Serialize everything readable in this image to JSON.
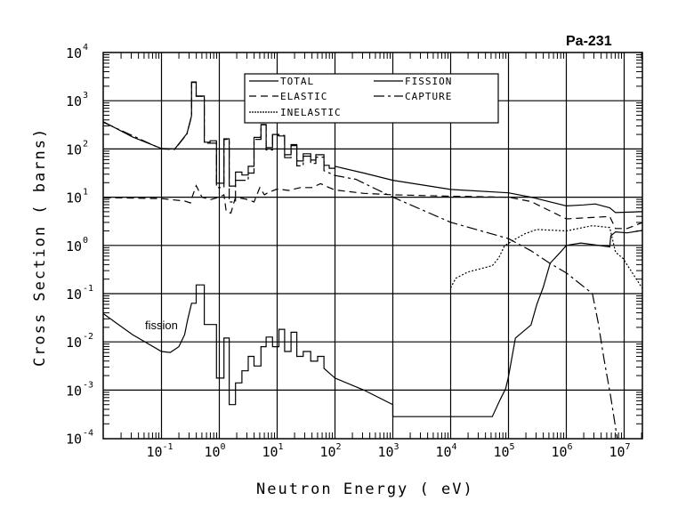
{
  "chart_data": {
    "type": "line",
    "title": "Pa-231",
    "xlabel": "Neutron Energy ( eV)",
    "ylabel": "Cross Section ( barns)",
    "xscale": "log",
    "yscale": "log",
    "x_units": "log10 of energy in eV",
    "y_units": "log10 of cross section in barns",
    "xlim_log10": [
      -2,
      7.31
    ],
    "ylim_log10": [
      -4,
      4
    ],
    "grid": true,
    "legend_placement": "top-center",
    "x_tick_base": "10",
    "x_tick_exponents": [
      "-1",
      "0",
      "1",
      "2",
      "3",
      "4",
      "5",
      "6",
      "7"
    ],
    "y_tick_base": "10",
    "y_tick_exponents": [
      "-4",
      "-3",
      "-2",
      "-1",
      "0",
      "1",
      "2",
      "3",
      "4"
    ],
    "annotation": "fission",
    "series": [
      {
        "name": "TOTAL",
        "style": "solid",
        "points": [
          [
            -2,
            2.56
          ],
          [
            -1.5,
            2.25
          ],
          [
            -1,
            2.01
          ],
          [
            -0.77,
            2.0
          ],
          [
            -0.56,
            2.32
          ],
          [
            -0.48,
            2.69
          ],
          [
            -0.48,
            3.39
          ],
          [
            -0.4,
            3.39
          ],
          [
            -0.4,
            3.1
          ],
          [
            -0.26,
            3.1
          ],
          [
            -0.26,
            2.14
          ],
          [
            -0.16,
            2.14
          ],
          [
            -0.16,
            2.17
          ],
          [
            -0.05,
            2.17
          ],
          [
            -0.05,
            1.29
          ],
          [
            0.08,
            1.29
          ],
          [
            0.08,
            2.21
          ],
          [
            0.17,
            2.21
          ],
          [
            0.17,
            1.23
          ],
          [
            0.28,
            1.23
          ],
          [
            0.28,
            1.52
          ],
          [
            0.39,
            1.52
          ],
          [
            0.39,
            1.46
          ],
          [
            0.5,
            1.46
          ],
          [
            0.5,
            1.64
          ],
          [
            0.6,
            1.64
          ],
          [
            0.6,
            2.24
          ],
          [
            0.72,
            2.24
          ],
          [
            0.72,
            2.51
          ],
          [
            0.81,
            2.51
          ],
          [
            0.81,
            2.03
          ],
          [
            0.92,
            2.03
          ],
          [
            0.92,
            2.3
          ],
          [
            1.03,
            2.3
          ],
          [
            1.03,
            2.27
          ],
          [
            1.13,
            2.27
          ],
          [
            1.13,
            1.88
          ],
          [
            1.24,
            1.88
          ],
          [
            1.24,
            2.09
          ],
          [
            1.34,
            2.09
          ],
          [
            1.34,
            1.75
          ],
          [
            1.45,
            1.75
          ],
          [
            1.45,
            1.9
          ],
          [
            1.58,
            1.9
          ],
          [
            1.58,
            1.77
          ],
          [
            1.67,
            1.77
          ],
          [
            1.67,
            1.88
          ],
          [
            1.81,
            1.88
          ],
          [
            1.81,
            1.66
          ],
          [
            1.9,
            1.66
          ],
          [
            1.9,
            1.6
          ],
          [
            2.0,
            1.6
          ],
          [
            2.0,
            1.64
          ],
          [
            2.5,
            1.5
          ],
          [
            3,
            1.35
          ],
          [
            4,
            1.16
          ],
          [
            5,
            1.09
          ],
          [
            5.39,
            1.0
          ],
          [
            6.0,
            0.82
          ],
          [
            6.3,
            0.84
          ],
          [
            6.5,
            0.86
          ],
          [
            6.75,
            0.78
          ],
          [
            6.85,
            0.68
          ],
          [
            7.31,
            0.7
          ]
        ]
      },
      {
        "name": "ELASTIC",
        "style": "dashed",
        "points": [
          [
            -2,
            0.99
          ],
          [
            -1,
            0.97
          ],
          [
            -0.6,
            0.92
          ],
          [
            -0.5,
            0.88
          ],
          [
            -0.48,
            0.97
          ],
          [
            -0.4,
            1.24
          ],
          [
            -0.3,
            1.0
          ],
          [
            -0.15,
            0.95
          ],
          [
            0.0,
            1.0
          ],
          [
            0.08,
            1.05
          ],
          [
            0.12,
            0.7
          ],
          [
            0.2,
            0.67
          ],
          [
            0.28,
            1.0
          ],
          [
            0.5,
            0.95
          ],
          [
            0.6,
            0.9
          ],
          [
            0.7,
            1.2
          ],
          [
            0.78,
            1.05
          ],
          [
            0.85,
            1.1
          ],
          [
            1.0,
            1.17
          ],
          [
            1.2,
            1.14
          ],
          [
            1.4,
            1.2
          ],
          [
            1.6,
            1.2
          ],
          [
            1.75,
            1.28
          ],
          [
            1.9,
            1.2
          ],
          [
            2.0,
            1.15
          ],
          [
            2.5,
            1.08
          ],
          [
            3,
            1.05
          ],
          [
            4,
            1.02
          ],
          [
            5,
            1.0
          ],
          [
            5.39,
            0.91
          ],
          [
            6.0,
            0.55
          ],
          [
            6.3,
            0.57
          ],
          [
            6.75,
            0.6
          ],
          [
            6.85,
            0.35
          ],
          [
            7.05,
            0.35
          ],
          [
            7.31,
            0.47
          ]
        ]
      },
      {
        "name": "INELASTIC",
        "style": "dotted",
        "points": [
          [
            4.0,
            -0.88
          ],
          [
            4.09,
            -0.68
          ],
          [
            4.3,
            -0.55
          ],
          [
            4.72,
            -0.42
          ],
          [
            4.83,
            -0.26
          ],
          [
            4.93,
            -0.01
          ],
          [
            5.13,
            0.14
          ],
          [
            5.28,
            0.24
          ],
          [
            5.49,
            0.33
          ],
          [
            6.0,
            0.3
          ],
          [
            6.45,
            0.41
          ],
          [
            6.75,
            0.37
          ],
          [
            6.85,
            -0.14
          ],
          [
            6.98,
            -0.27
          ],
          [
            7.31,
            -0.88
          ]
        ]
      },
      {
        "name": "FISSION",
        "style": "solid",
        "points": [
          [
            -2,
            -1.42
          ],
          [
            -1.5,
            -1.85
          ],
          [
            -1,
            -2.2
          ],
          [
            -0.85,
            -2.22
          ],
          [
            -0.7,
            -2.1
          ],
          [
            -0.6,
            -1.85
          ],
          [
            -0.55,
            -1.55
          ],
          [
            -0.48,
            -1.2
          ],
          [
            -0.4,
            -1.2
          ],
          [
            -0.4,
            -0.82
          ],
          [
            -0.26,
            -0.82
          ],
          [
            -0.26,
            -1.64
          ],
          [
            -0.05,
            -1.64
          ],
          [
            -0.05,
            -2.75
          ],
          [
            0.08,
            -2.75
          ],
          [
            0.08,
            -1.92
          ],
          [
            0.17,
            -1.92
          ],
          [
            0.17,
            -3.3
          ],
          [
            0.28,
            -3.3
          ],
          [
            0.28,
            -2.85
          ],
          [
            0.39,
            -2.85
          ],
          [
            0.39,
            -2.6
          ],
          [
            0.5,
            -2.6
          ],
          [
            0.5,
            -2.3
          ],
          [
            0.6,
            -2.3
          ],
          [
            0.6,
            -2.5
          ],
          [
            0.72,
            -2.5
          ],
          [
            0.72,
            -2.1
          ],
          [
            0.81,
            -2.1
          ],
          [
            0.81,
            -1.9
          ],
          [
            0.92,
            -1.9
          ],
          [
            0.92,
            -2.1
          ],
          [
            1.03,
            -2.1
          ],
          [
            1.03,
            -1.74
          ],
          [
            1.13,
            -1.74
          ],
          [
            1.13,
            -2.2
          ],
          [
            1.24,
            -2.2
          ],
          [
            1.24,
            -1.8
          ],
          [
            1.34,
            -1.8
          ],
          [
            1.34,
            -2.3
          ],
          [
            1.45,
            -2.3
          ],
          [
            1.45,
            -2.2
          ],
          [
            1.58,
            -2.2
          ],
          [
            1.58,
            -2.4
          ],
          [
            1.7,
            -2.4
          ],
          [
            1.7,
            -2.3
          ],
          [
            1.81,
            -2.3
          ],
          [
            1.81,
            -2.55
          ],
          [
            2.0,
            -2.75
          ],
          [
            2.5,
            -3.0
          ],
          [
            3,
            -3.3
          ],
          [
            3,
            -3.55
          ],
          [
            4.72,
            -3.55
          ],
          [
            4.85,
            -3.21
          ],
          [
            4.95,
            -2.97
          ],
          [
            5.0,
            -2.72
          ],
          [
            5.12,
            -1.92
          ],
          [
            5.39,
            -1.65
          ],
          [
            5.49,
            -1.22
          ],
          [
            5.6,
            -0.87
          ],
          [
            5.72,
            -0.37
          ],
          [
            5.92,
            -0.11
          ],
          [
            6.0,
            0.0
          ],
          [
            6.25,
            0.05
          ],
          [
            6.75,
            -0.03
          ],
          [
            6.77,
            0.2
          ],
          [
            6.85,
            0.28
          ],
          [
            7.05,
            0.26
          ],
          [
            7.31,
            0.31
          ]
        ]
      },
      {
        "name": "CAPTURE",
        "style": "dashdot",
        "points": [
          [
            -2,
            2.55
          ],
          [
            -1,
            2.0
          ],
          [
            -0.77,
            1.99
          ],
          [
            -0.56,
            2.31
          ],
          [
            -0.48,
            2.68
          ],
          [
            -0.48,
            3.38
          ],
          [
            -0.4,
            3.38
          ],
          [
            -0.4,
            3.09
          ],
          [
            -0.26,
            3.09
          ],
          [
            -0.26,
            2.12
          ],
          [
            -0.05,
            2.12
          ],
          [
            -0.05,
            1.2
          ],
          [
            0.08,
            1.2
          ],
          [
            0.08,
            2.2
          ],
          [
            0.17,
            2.2
          ],
          [
            0.17,
            0.9
          ],
          [
            0.28,
            0.9
          ],
          [
            0.28,
            1.35
          ],
          [
            0.5,
            1.35
          ],
          [
            0.5,
            1.5
          ],
          [
            0.6,
            1.5
          ],
          [
            0.6,
            2.2
          ],
          [
            0.72,
            2.2
          ],
          [
            0.72,
            2.5
          ],
          [
            0.81,
            2.5
          ],
          [
            0.81,
            1.98
          ],
          [
            0.92,
            1.98
          ],
          [
            0.92,
            2.28
          ],
          [
            1.13,
            2.28
          ],
          [
            1.13,
            1.82
          ],
          [
            1.24,
            1.82
          ],
          [
            1.24,
            2.07
          ],
          [
            1.34,
            2.07
          ],
          [
            1.34,
            1.65
          ],
          [
            1.45,
            1.65
          ],
          [
            1.45,
            1.85
          ],
          [
            1.58,
            1.85
          ],
          [
            1.58,
            1.7
          ],
          [
            1.67,
            1.7
          ],
          [
            1.67,
            1.83
          ],
          [
            1.81,
            1.83
          ],
          [
            1.81,
            1.55
          ],
          [
            2.0,
            1.45
          ],
          [
            2.36,
            1.37
          ],
          [
            3,
            1.0
          ],
          [
            4,
            0.48
          ],
          [
            5,
            0.14
          ],
          [
            5.39,
            -0.11
          ],
          [
            5.7,
            -0.36
          ],
          [
            6.0,
            -0.57
          ],
          [
            6.45,
            -1.0
          ],
          [
            6.55,
            -1.6
          ],
          [
            6.65,
            -2.35
          ],
          [
            6.77,
            -3.15
          ],
          [
            6.88,
            -4
          ]
        ]
      }
    ]
  }
}
